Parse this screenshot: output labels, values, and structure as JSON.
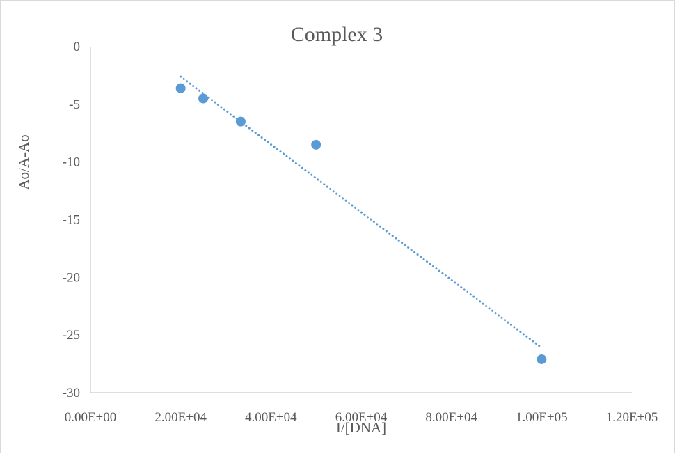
{
  "chart_data": {
    "type": "scatter",
    "title": "Complex 3",
    "xlabel": "I/[DNA]",
    "ylabel": "Ao/A-Ao",
    "xlim": [
      0,
      120000
    ],
    "ylim": [
      -30,
      0
    ],
    "x_ticks": [
      0,
      20000,
      40000,
      60000,
      80000,
      100000,
      120000
    ],
    "x_tick_labels": [
      "0.00E+00",
      "2.00E+04",
      "4.00E+04",
      "6.00E+04",
      "8.00E+04",
      "1.00E+05",
      "1.20E+05"
    ],
    "y_ticks": [
      0,
      -5,
      -10,
      -15,
      -20,
      -25,
      -30
    ],
    "y_tick_labels": [
      "0",
      "-5",
      "-10",
      "-15",
      "-20",
      "-25",
      "-30"
    ],
    "grid": false,
    "legend": "none",
    "series": [
      {
        "marker_color": "#5b9bd5",
        "points": [
          {
            "x": 20000,
            "y": -3.6
          },
          {
            "x": 25000,
            "y": -4.5
          },
          {
            "x": 33300,
            "y": -6.5
          },
          {
            "x": 50000,
            "y": -8.5
          },
          {
            "x": 100000,
            "y": -27.1
          }
        ],
        "trendline": {
          "type": "linear",
          "style": "dotted",
          "color": "#5b9bd5",
          "from": {
            "x": 20000,
            "y": -2.6
          },
          "to": {
            "x": 100000,
            "y": -26.1
          }
        }
      }
    ]
  }
}
